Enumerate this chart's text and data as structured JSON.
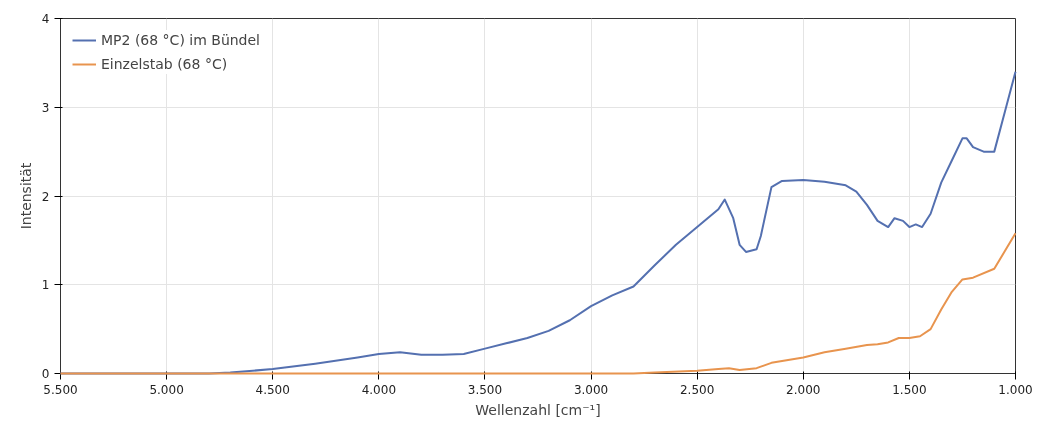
{
  "chart_data": {
    "type": "line",
    "xlabel": "Wellenzahl [cm⁻¹]",
    "ylabel": "Intensität",
    "xlim": [
      5500,
      1000
    ],
    "ylim": [
      0,
      4
    ],
    "xticks": [
      {
        "value": 5500,
        "label": "5.500"
      },
      {
        "value": 5000,
        "label": "5.000"
      },
      {
        "value": 4500,
        "label": "4.500"
      },
      {
        "value": 4000,
        "label": "4.000"
      },
      {
        "value": 3500,
        "label": "3.500"
      },
      {
        "value": 3000,
        "label": "3.000"
      },
      {
        "value": 2500,
        "label": "2.500"
      },
      {
        "value": 2000,
        "label": "2.000"
      },
      {
        "value": 1500,
        "label": "1.500"
      },
      {
        "value": 1000,
        "label": "1.000"
      }
    ],
    "yticks": [
      0,
      1,
      2,
      3,
      4
    ],
    "grid": true,
    "legend": "top left",
    "line_style": "solid",
    "marker": "none",
    "series": [
      {
        "name": "MP2 (68 °C) im Bündel",
        "color": "#5470b0",
        "x": [
          5500,
          4800,
          4700,
          4500,
          4300,
          4100,
          4000,
          3900,
          3800,
          3700,
          3600,
          3500,
          3400,
          3300,
          3200,
          3100,
          3000,
          2900,
          2800,
          2700,
          2600,
          2500,
          2400,
          2370,
          2330,
          2300,
          2270,
          2220,
          2200,
          2150,
          2100,
          2000,
          1900,
          1800,
          1750,
          1700,
          1650,
          1600,
          1570,
          1530,
          1500,
          1470,
          1440,
          1400,
          1350,
          1300,
          1250,
          1230,
          1200,
          1150,
          1100,
          1050,
          1000
        ],
        "values": [
          0,
          0,
          0.01,
          0.05,
          0.11,
          0.18,
          0.22,
          0.24,
          0.21,
          0.21,
          0.22,
          0.28,
          0.34,
          0.4,
          0.48,
          0.6,
          0.76,
          0.88,
          0.98,
          1.22,
          1.45,
          1.65,
          1.85,
          1.96,
          1.75,
          1.45,
          1.37,
          1.4,
          1.55,
          2.1,
          2.17,
          2.18,
          2.16,
          2.12,
          2.05,
          1.9,
          1.72,
          1.65,
          1.75,
          1.72,
          1.65,
          1.68,
          1.65,
          1.8,
          2.15,
          2.4,
          2.65,
          2.65,
          2.55,
          2.5,
          2.5,
          2.95,
          3.4
        ]
      },
      {
        "name": "Einzelstab (68 °C)",
        "color": "#e8944e",
        "x": [
          5500,
          2800,
          2700,
          2500,
          2400,
          2350,
          2300,
          2220,
          2150,
          2000,
          1900,
          1800,
          1700,
          1650,
          1600,
          1550,
          1500,
          1450,
          1400,
          1350,
          1300,
          1250,
          1200,
          1100,
          1050,
          1000
        ],
        "values": [
          0,
          0,
          0.01,
          0.03,
          0.05,
          0.06,
          0.04,
          0.06,
          0.12,
          0.18,
          0.24,
          0.28,
          0.32,
          0.33,
          0.35,
          0.4,
          0.4,
          0.42,
          0.5,
          0.72,
          0.92,
          1.06,
          1.08,
          1.18,
          1.38,
          1.58
        ]
      }
    ]
  }
}
